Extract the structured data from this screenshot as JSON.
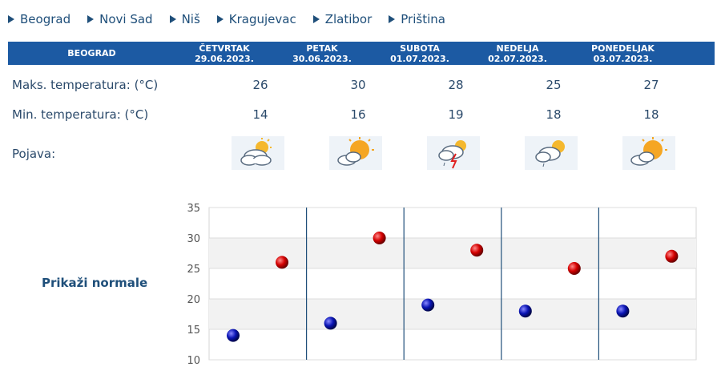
{
  "nav": {
    "cities": [
      "Beograd",
      "Novi Sad",
      "Niš",
      "Kragujevac",
      "Zlatibor",
      "Priština"
    ]
  },
  "forecast": {
    "city": "BEOGRAD",
    "days": [
      {
        "name": "ČETVRTAK",
        "date": "29.06.2023.",
        "max": "26",
        "min": "14",
        "icon": "partly-cloudy-icon"
      },
      {
        "name": "PETAK",
        "date": "30.06.2023.",
        "max": "30",
        "min": "16",
        "icon": "sun-cloud-icon"
      },
      {
        "name": "SUBOTA",
        "date": "01.07.2023.",
        "max": "28",
        "min": "19",
        "icon": "thunderstorm-icon"
      },
      {
        "name": "NEDELJA",
        "date": "02.07.2023.",
        "max": "25",
        "min": "18",
        "icon": "sun-cloud-rain-icon"
      },
      {
        "name": "PONEDELJAK",
        "date": "03.07.2023.",
        "max": "27",
        "min": "18",
        "icon": "sun-cloud-icon"
      }
    ],
    "labels": {
      "max": "Maks. temperatura: (°C)",
      "min": "Min. temperatura: (°C)",
      "phenomenon": "Pojava:"
    }
  },
  "normals_link": "Prikaži normale",
  "colors": {
    "header_bg": "#1c5aa3",
    "max_marker": "#d40000",
    "min_marker": "#0a14b4"
  },
  "chart_data": {
    "type": "scatter",
    "ylim": [
      10,
      35
    ],
    "yticks": [
      10,
      15,
      20,
      25,
      30,
      35
    ],
    "categories": [
      "29.06.2023.",
      "30.06.2023.",
      "01.07.2023.",
      "02.07.2023.",
      "03.07.2023."
    ],
    "series": [
      {
        "values": [
          26,
          30,
          28,
          25,
          27
        ]
      },
      {
        "values": [
          14,
          16,
          19,
          18,
          18
        ]
      }
    ]
  }
}
